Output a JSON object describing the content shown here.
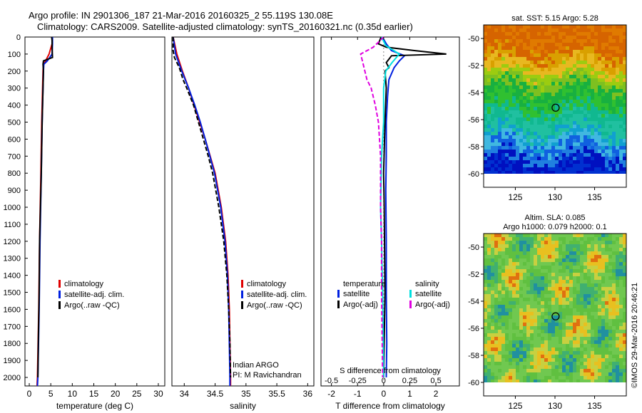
{
  "title_line1": "Argo profile: IN 2901306_187 21-Mar-2016 20160325_2 55.119S 130.08E",
  "title_line2": "Climatology: CARS2009. Satellite-adjusted climatology: synTS_20160321.nc (0.35d earlier)",
  "credit": "©IMOS 29-Mar-2016 20:46:21",
  "colors": {
    "climatology": "#e00000",
    "satellite": "#0020e0",
    "argo": "#000000",
    "salinity_sat": "#00e0e0",
    "salinity_argo": "#e000e0"
  },
  "chart_data": [
    {
      "type": "line",
      "name": "temperature-profile",
      "xlabel": "temperature (deg C)",
      "ylabel": "",
      "xlim": [
        -1,
        31.5
      ],
      "ylim": [
        2050,
        0
      ],
      "xticks": [
        0,
        5,
        10,
        15,
        20,
        25,
        30
      ],
      "yticks": [
        0,
        100,
        200,
        300,
        400,
        500,
        600,
        700,
        800,
        900,
        1000,
        1100,
        1200,
        1300,
        1400,
        1500,
        1600,
        1700,
        1800,
        1900,
        2000
      ],
      "ytick_labels": [
        "0",
        "100",
        "200",
        "300",
        "400",
        "500",
        "600",
        "700",
        "800",
        "900",
        "1000",
        "1100",
        "1200",
        "1300",
        "1400",
        "1500",
        "1600",
        "1700",
        "1800",
        "1900",
        "2000"
      ],
      "legend": [
        "climatology",
        "satellite-adj. clim.",
        "Argo(..raw -QC)"
      ],
      "series": [
        {
          "name": "climatology",
          "depth": [
            0,
            40,
            100,
            140,
            160,
            200,
            300,
            500,
            800,
            1200,
            1600,
            2000,
            2050
          ],
          "values": [
            5.3,
            5.3,
            4.6,
            3.8,
            3.3,
            3.2,
            3.1,
            2.9,
            2.7,
            2.4,
            2.2,
            1.9,
            1.8
          ]
        },
        {
          "name": "satellite-adj. clim.",
          "depth": [
            0,
            40,
            100,
            140,
            160,
            200,
            300,
            500,
            800,
            1200,
            1600,
            2000,
            2050
          ],
          "values": [
            5.4,
            5.4,
            5.3,
            4.2,
            3.4,
            3.3,
            3.2,
            3.0,
            2.8,
            2.5,
            2.3,
            2.0,
            1.9
          ]
        },
        {
          "name": "Argo(..raw -QC)",
          "depth": [
            0,
            20,
            60,
            120,
            140,
            160,
            200,
            300,
            500,
            800,
            1000,
            1200,
            1500,
            1800,
            2000
          ],
          "values": [
            5.2,
            5.3,
            5.3,
            5.4,
            3.3,
            3.2,
            3.3,
            3.2,
            3.0,
            2.8,
            2.6,
            2.4,
            2.3,
            2.1,
            2.0
          ]
        }
      ]
    },
    {
      "type": "line",
      "name": "salinity-profile",
      "xlabel": "salinity",
      "xlim": [
        33.8,
        36.1
      ],
      "ylim": [
        2050,
        0
      ],
      "xticks": [
        34,
        34.5,
        35,
        35.5,
        36
      ],
      "xtick_labels": [
        "34",
        "34.5",
        "35",
        "35.5",
        "36"
      ],
      "legend": [
        "climatology",
        "satellite-adj. clim.",
        "Argo(..raw -QC)"
      ],
      "annotation": [
        "Indian ARGO",
        "PI: M Ravichandran"
      ],
      "series": [
        {
          "name": "climatology",
          "depth": [
            0,
            100,
            200,
            300,
            400,
            500,
            600,
            800,
            1000,
            1200,
            1400,
            1600,
            1800,
            2000,
            2050
          ],
          "values": [
            33.82,
            33.88,
            33.97,
            34.07,
            34.16,
            34.25,
            34.34,
            34.5,
            34.6,
            34.67,
            34.71,
            34.73,
            34.74,
            34.75,
            34.75
          ]
        },
        {
          "name": "satellite-adj. clim.",
          "depth": [
            0,
            100,
            200,
            300,
            400,
            500,
            600,
            800,
            1000,
            1200,
            1400,
            1600,
            1800,
            2000,
            2050
          ],
          "values": [
            33.82,
            33.86,
            33.96,
            34.07,
            34.17,
            34.26,
            34.34,
            34.49,
            34.59,
            34.66,
            34.7,
            34.72,
            34.73,
            34.74,
            34.74
          ]
        },
        {
          "name": "Argo(..raw -QC)",
          "depth": [
            0,
            80,
            120,
            180,
            250,
            300,
            400,
            500,
            600,
            700,
            800,
            1000,
            1200,
            1400,
            1600,
            1800,
            2000
          ],
          "values": [
            33.82,
            33.82,
            33.84,
            33.92,
            33.98,
            34.04,
            34.15,
            34.23,
            34.31,
            34.39,
            34.46,
            34.56,
            34.64,
            34.69,
            34.72,
            34.74,
            34.75
          ]
        }
      ]
    },
    {
      "type": "line",
      "name": "difference-profile",
      "xlabel": "T difference from climatology",
      "xlabel2": "S difference from climatology",
      "xlim": [
        -2.4,
        2.9
      ],
      "ylim": [
        2050,
        0
      ],
      "xticks_T": [
        -2,
        -1,
        0,
        1,
        2
      ],
      "xtick_labels_T": [
        "-2",
        "-1",
        "0",
        "1",
        "2"
      ],
      "xticks_S": [
        -0.5,
        -0.25,
        0,
        0.25,
        0.5
      ],
      "xtick_labels_S": [
        "-0.5",
        "-0.25",
        "0",
        "0.25",
        "0.5"
      ],
      "legend_headers": [
        "temperature",
        "salinity"
      ],
      "legend": [
        "satellite",
        "Argo(-adj)",
        "satellite",
        "Argo(-adj)"
      ],
      "series": [
        {
          "name": "temperature satellite",
          "depth": [
            0,
            40,
            80,
            110,
            140,
            180,
            250,
            350,
            500,
            700,
            900,
            1200,
            1500,
            1800,
            2000
          ],
          "values": [
            -0.05,
            0.1,
            0.3,
            0.8,
            0.6,
            0.4,
            0.2,
            0.15,
            0.1,
            0.1,
            0.08,
            0.1,
            0.1,
            0.12,
            0.1
          ]
        },
        {
          "name": "temperature Argo(-adj)",
          "depth": [
            0,
            40,
            60,
            80,
            100,
            110,
            130,
            150,
            180,
            200,
            300,
            500,
            800,
            1000,
            1500,
            2000
          ],
          "values": [
            -0.1,
            -0.2,
            0.1,
            1.2,
            2.4,
            0.3,
            0.2,
            0.1,
            0.2,
            0.05,
            0.1,
            0.05,
            0.0,
            0.02,
            0.05,
            0.0
          ]
        },
        {
          "name": "salinity satellite",
          "depth": [
            0,
            50,
            100,
            150,
            200,
            300,
            500,
            700,
            1000,
            1200,
            1500,
            2000
          ],
          "values": [
            -0.02,
            0.02,
            0.15,
            0.08,
            0.02,
            0.0,
            0.0,
            -0.02,
            -0.03,
            -0.02,
            -0.01,
            0.0
          ]
        },
        {
          "name": "salinity Argo(-adj)",
          "depth": [
            0,
            60,
            100,
            150,
            200,
            250,
            300,
            400,
            500,
            600,
            700,
            800,
            1000,
            1200,
            1500,
            2000
          ],
          "values": [
            0.0,
            -0.1,
            -0.22,
            -0.2,
            -0.18,
            -0.16,
            -0.12,
            -0.08,
            -0.05,
            -0.04,
            -0.03,
            -0.03,
            -0.03,
            -0.02,
            -0.02,
            -0.01
          ]
        }
      ]
    },
    {
      "type": "heatmap",
      "name": "sst-map",
      "title": "sat. SST: 5.15  Argo: 5.28",
      "xlim": [
        121,
        139
      ],
      "ylim": [
        -61,
        -49
      ],
      "xticks": [
        125,
        130,
        135
      ],
      "yticks": [
        -50,
        -52,
        -54,
        -56,
        -58,
        -60
      ],
      "marker": {
        "lon": 130.08,
        "lat": -55.119
      }
    },
    {
      "type": "heatmap",
      "name": "sla-map",
      "title": "Altim. SLA: 0.085",
      "subtitle": "Argo h1000: 0.079 h2000: 0.1",
      "xlim": [
        121,
        139
      ],
      "ylim": [
        -61,
        -49
      ],
      "xticks": [
        125,
        130,
        135
      ],
      "yticks": [
        -50,
        -52,
        -54,
        -56,
        -58,
        -60
      ],
      "marker": {
        "lon": 130.08,
        "lat": -55.119
      }
    }
  ]
}
